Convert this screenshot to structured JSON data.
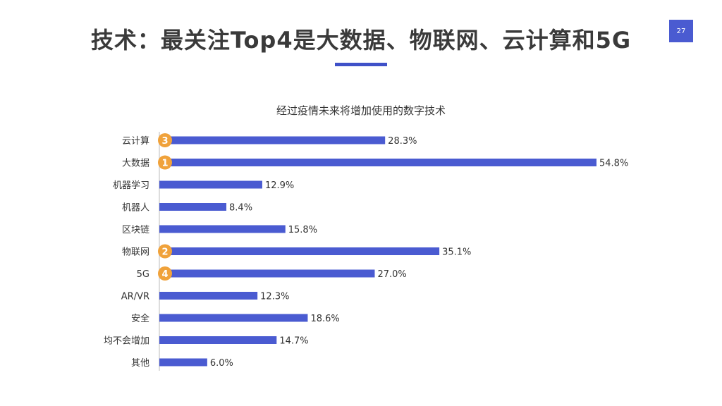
{
  "slide": {
    "title": "技术：最关注Top4是大数据、物联网、云计算和5G",
    "page_number": "27"
  },
  "chart_data": {
    "type": "bar",
    "orientation": "horizontal",
    "title": "经过疫情未来将增加使用的数字技术",
    "categories": [
      "云计算",
      "大数据",
      "机器学习",
      "机器人",
      "区块链",
      "物联网",
      "5G",
      "AR/VR",
      "安全",
      "均不会增加",
      "其他"
    ],
    "values": [
      28.3,
      54.8,
      12.9,
      8.4,
      15.8,
      35.1,
      27.0,
      12.3,
      18.6,
      14.7,
      6.0
    ],
    "value_labels": [
      "28.3%",
      "54.8%",
      "12.9%",
      "8.4%",
      "15.8%",
      "35.1%",
      "27.0%",
      "12.3%",
      "18.6%",
      "14.7%",
      "6.0%"
    ],
    "rank_badges": [
      {
        "category": "云计算",
        "rank": "3"
      },
      {
        "category": "大数据",
        "rank": "1"
      },
      {
        "category": "物联网",
        "rank": "2"
      },
      {
        "category": "5G",
        "rank": "4"
      }
    ],
    "xlim": [
      0,
      60
    ],
    "grid": false,
    "colors": {
      "bar": "#4a5bd1",
      "badge": "#f0a23b"
    }
  }
}
